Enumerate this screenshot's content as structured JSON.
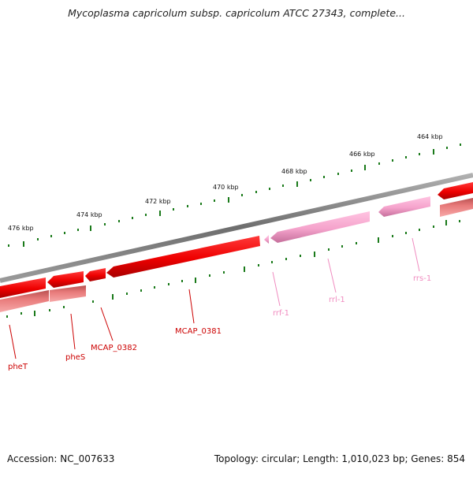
{
  "header": {
    "title": "Mycoplasma capricolum subsp. capricolum ATCC 27343, complete..."
  },
  "footer": {
    "accession": "Accession: NC_007633",
    "summary": "Topology: circular; Length: 1,010,023 bp; Genes: 854"
  },
  "map": {
    "tick_labels": [
      "476 kbp",
      "474 kbp",
      "472 kbp",
      "470 kbp",
      "468 kbp",
      "466 kbp",
      "464 kbp"
    ],
    "gene_labels": [
      {
        "name": "pheT",
        "color": "#cc0000"
      },
      {
        "name": "pheS",
        "color": "#cc0000"
      },
      {
        "name": "MCAP_0382",
        "color": "#cc0000"
      },
      {
        "name": "MCAP_0381",
        "color": "#cc0000"
      },
      {
        "name": "rrf-1",
        "color": "#f08cc0"
      },
      {
        "name": "rrl-1",
        "color": "#f08cc0"
      },
      {
        "name": "rrs-1",
        "color": "#f08cc0"
      }
    ],
    "colors": {
      "cds": "#ee0000",
      "cds_reverse": "#e87a7a",
      "rrna": "#f5a3cc",
      "backbone": "#7f7f7f",
      "tick": "#1a7a1a"
    }
  }
}
